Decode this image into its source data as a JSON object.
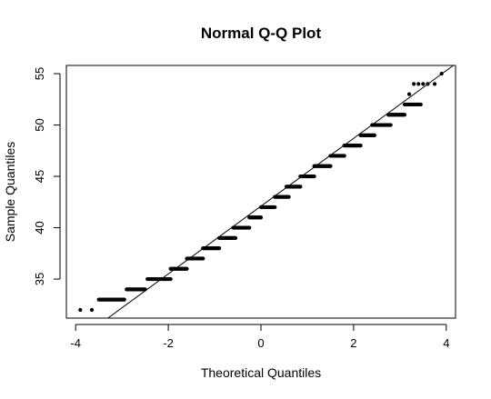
{
  "chart_data": {
    "type": "scatter",
    "title": "Normal Q-Q Plot",
    "xlabel": "Theoretical Quantiles",
    "ylabel": "Sample Quantiles",
    "xlim": [
      -4.2,
      4.2
    ],
    "ylim": [
      31.2,
      55.8
    ],
    "x_ticks": [
      -4,
      -2,
      0,
      2,
      4
    ],
    "y_ticks": [
      35,
      40,
      45,
      50,
      55
    ],
    "reference_line": {
      "intercept": 42.1,
      "slope": 3.3
    },
    "groups": [
      {
        "y": 32,
        "x": [
          -3.9,
          -3.65
        ]
      },
      {
        "y": 33,
        "x_range": [
          -3.5,
          -2.95
        ]
      },
      {
        "y": 34,
        "x_range": [
          -2.9,
          -2.5
        ]
      },
      {
        "y": 35,
        "x_range": [
          -2.45,
          -1.95
        ]
      },
      {
        "y": 36,
        "x_range": [
          -1.95,
          -1.6
        ]
      },
      {
        "y": 37,
        "x_range": [
          -1.6,
          -1.25
        ]
      },
      {
        "y": 38,
        "x_range": [
          -1.25,
          -0.9
        ]
      },
      {
        "y": 39,
        "x_range": [
          -0.9,
          -0.55
        ]
      },
      {
        "y": 40,
        "x_range": [
          -0.6,
          -0.25
        ]
      },
      {
        "y": 41,
        "x_range": [
          -0.25,
          0.0
        ]
      },
      {
        "y": 42,
        "x_range": [
          0.0,
          0.3
        ]
      },
      {
        "y": 43,
        "x_range": [
          0.3,
          0.6
        ]
      },
      {
        "y": 44,
        "x_range": [
          0.55,
          0.85
        ]
      },
      {
        "y": 45,
        "x_range": [
          0.85,
          1.15
        ]
      },
      {
        "y": 46,
        "x_range": [
          1.15,
          1.5
        ]
      },
      {
        "y": 47,
        "x_range": [
          1.5,
          1.8
        ]
      },
      {
        "y": 48,
        "x_range": [
          1.8,
          2.15
        ]
      },
      {
        "y": 49,
        "x_range": [
          2.15,
          2.45
        ]
      },
      {
        "y": 50,
        "x_range": [
          2.4,
          2.8
        ]
      },
      {
        "y": 51,
        "x_range": [
          2.75,
          3.1
        ]
      },
      {
        "y": 52,
        "x_range": [
          3.1,
          3.45
        ]
      },
      {
        "y": 53,
        "x": [
          3.2
        ]
      },
      {
        "y": 54,
        "x": [
          3.3,
          3.4,
          3.5,
          3.6,
          3.75
        ]
      },
      {
        "y": 55,
        "x": [
          3.9
        ]
      }
    ]
  }
}
